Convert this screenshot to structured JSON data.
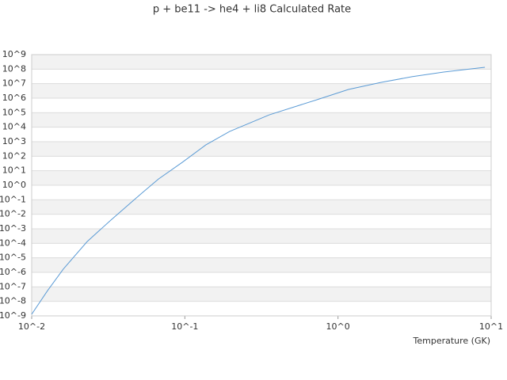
{
  "chart_data": {
    "type": "line",
    "title": "p + be11 -> he4 + li8 Calculated Rate",
    "x_label": "Temperature (GK)",
    "xscale": "log",
    "yscale": "log",
    "grid": true,
    "banded": true,
    "xlim": [
      0.01,
      10
    ],
    "ylim": [
      1e-09,
      1000000000.0
    ],
    "xticks": [
      {
        "value": 0.01,
        "label": "10^-2"
      },
      {
        "value": 0.1,
        "label": "10^-1"
      },
      {
        "value": 1,
        "label": "10^0"
      },
      {
        "value": 10,
        "label": "10^1"
      }
    ],
    "yticks": [
      {
        "value": 1e-09,
        "label": "10^-9"
      },
      {
        "value": 1e-08,
        "label": "10^-8"
      },
      {
        "value": 1e-07,
        "label": "10^-7"
      },
      {
        "value": 1e-06,
        "label": "10^-6"
      },
      {
        "value": 1e-05,
        "label": "10^-5"
      },
      {
        "value": 0.0001,
        "label": "10^-4"
      },
      {
        "value": 0.001,
        "label": "10^-3"
      },
      {
        "value": 0.01,
        "label": "10^-2"
      },
      {
        "value": 0.1,
        "label": "10^-1"
      },
      {
        "value": 1,
        "label": "10^0"
      },
      {
        "value": 10,
        "label": "10^1"
      },
      {
        "value": 100,
        "label": "10^2"
      },
      {
        "value": 1000,
        "label": "10^3"
      },
      {
        "value": 10000.0,
        "label": "10^4"
      },
      {
        "value": 100000.0,
        "label": "10^5"
      },
      {
        "value": 1000000.0,
        "label": "10^6"
      },
      {
        "value": 10000000.0,
        "label": "10^7"
      },
      {
        "value": 100000000.0,
        "label": "10^8"
      },
      {
        "value": 1000000000.0,
        "label": "10^9"
      }
    ],
    "series": [
      {
        "color": "#5b9bd5",
        "x": [
          0.01,
          0.0127,
          0.0161,
          0.023,
          0.0329,
          0.053,
          0.0673,
          0.0962,
          0.137,
          0.196,
          0.356,
          0.728,
          1.17,
          1.89,
          3.04,
          4.9,
          9.1
        ],
        "values": [
          1.3e-09,
          5.5e-08,
          1.7e-06,
          0.00013,
          0.004,
          0.32,
          2.7,
          38,
          600,
          5100,
          71000,
          780000,
          4000000,
          12000000,
          30000000,
          63000000,
          135000000
        ]
      }
    ]
  }
}
